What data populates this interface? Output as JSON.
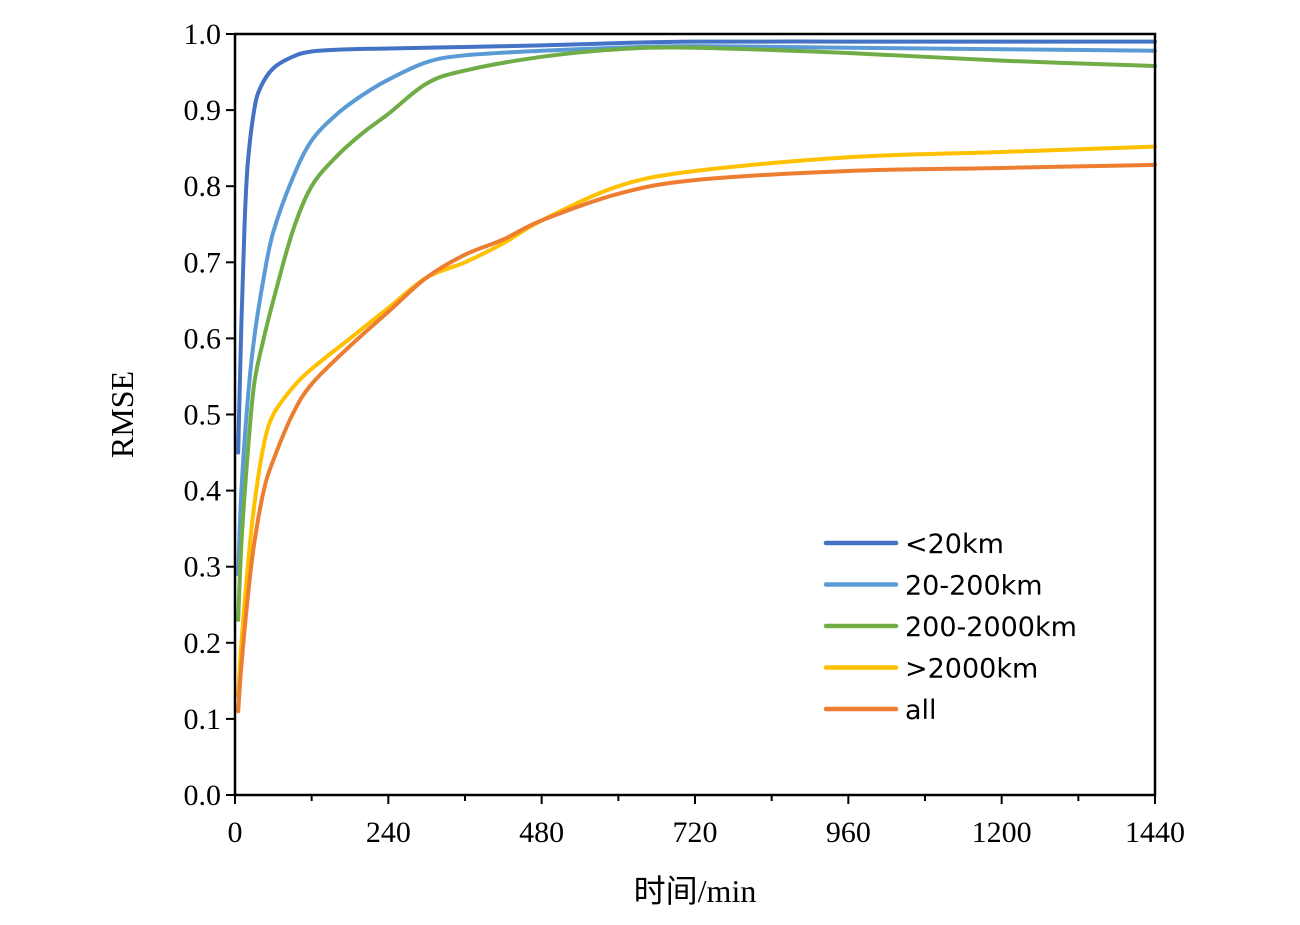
{
  "chart_data": {
    "type": "line",
    "title": "",
    "xlabel": "时间/min",
    "ylabel": "RMSE",
    "xlim": [
      0,
      1440
    ],
    "ylim": [
      0.0,
      1.0
    ],
    "x_ticks": [
      0,
      240,
      480,
      720,
      960,
      1200,
      1440
    ],
    "x_tick_labels": [
      "0",
      "240",
      "480",
      "720",
      "960",
      "1200",
      "1440"
    ],
    "x_minor_ticks": [
      120,
      360,
      600,
      840,
      1080,
      1320
    ],
    "y_ticks": [
      0.0,
      0.1,
      0.2,
      0.3,
      0.4,
      0.5,
      0.6,
      0.7,
      0.8,
      0.9,
      1.0
    ],
    "y_tick_labels": [
      "0.0",
      "0.1",
      "0.2",
      "0.3",
      "0.4",
      "0.5",
      "0.6",
      "0.7",
      "0.8",
      "0.9",
      "1.0"
    ],
    "grid": false,
    "legend_position": "bottom-right",
    "series": [
      {
        "name": "<20km",
        "color": "#4472C4",
        "points": [
          [
            5,
            0.45
          ],
          [
            10,
            0.62
          ],
          [
            15,
            0.75
          ],
          [
            20,
            0.83
          ],
          [
            30,
            0.9
          ],
          [
            40,
            0.93
          ],
          [
            60,
            0.955
          ],
          [
            90,
            0.97
          ],
          [
            120,
            0.977
          ],
          [
            180,
            0.98
          ],
          [
            240,
            0.981
          ],
          [
            360,
            0.983
          ],
          [
            480,
            0.985
          ],
          [
            600,
            0.988
          ],
          [
            720,
            0.99
          ],
          [
            960,
            0.99
          ],
          [
            1200,
            0.99
          ],
          [
            1440,
            0.99
          ]
        ]
      },
      {
        "name": "20-200km",
        "color": "#5B9BD5",
        "points": [
          [
            5,
            0.29
          ],
          [
            10,
            0.4
          ],
          [
            20,
            0.52
          ],
          [
            30,
            0.6
          ],
          [
            45,
            0.68
          ],
          [
            60,
            0.74
          ],
          [
            90,
            0.81
          ],
          [
            120,
            0.86
          ],
          [
            160,
            0.895
          ],
          [
            200,
            0.92
          ],
          [
            240,
            0.94
          ],
          [
            300,
            0.963
          ],
          [
            360,
            0.972
          ],
          [
            480,
            0.978
          ],
          [
            600,
            0.982
          ],
          [
            720,
            0.984
          ],
          [
            960,
            0.982
          ],
          [
            1200,
            0.98
          ],
          [
            1440,
            0.978
          ]
        ]
      },
      {
        "name": "200-2000km",
        "color": "#70AD47",
        "points": [
          [
            5,
            0.23
          ],
          [
            10,
            0.33
          ],
          [
            20,
            0.45
          ],
          [
            30,
            0.54
          ],
          [
            45,
            0.6
          ],
          [
            60,
            0.65
          ],
          [
            90,
            0.74
          ],
          [
            120,
            0.8
          ],
          [
            160,
            0.84
          ],
          [
            200,
            0.87
          ],
          [
            240,
            0.895
          ],
          [
            300,
            0.935
          ],
          [
            360,
            0.952
          ],
          [
            480,
            0.97
          ],
          [
            600,
            0.98
          ],
          [
            720,
            0.982
          ],
          [
            960,
            0.975
          ],
          [
            1200,
            0.965
          ],
          [
            1440,
            0.958
          ]
        ]
      },
      {
        "name": ">2000km",
        "color": "#FFC000",
        "points": [
          [
            5,
            0.13
          ],
          [
            10,
            0.2
          ],
          [
            20,
            0.3
          ],
          [
            30,
            0.38
          ],
          [
            45,
            0.46
          ],
          [
            60,
            0.5
          ],
          [
            90,
            0.535
          ],
          [
            120,
            0.56
          ],
          [
            180,
            0.6
          ],
          [
            240,
            0.64
          ],
          [
            300,
            0.68
          ],
          [
            360,
            0.7
          ],
          [
            420,
            0.725
          ],
          [
            480,
            0.755
          ],
          [
            600,
            0.8
          ],
          [
            720,
            0.82
          ],
          [
            960,
            0.838
          ],
          [
            1200,
            0.845
          ],
          [
            1440,
            0.852
          ]
        ]
      },
      {
        "name": "all",
        "color": "#ED7D31",
        "points": [
          [
            5,
            0.11
          ],
          [
            10,
            0.17
          ],
          [
            20,
            0.26
          ],
          [
            30,
            0.33
          ],
          [
            45,
            0.4
          ],
          [
            60,
            0.44
          ],
          [
            90,
            0.5
          ],
          [
            120,
            0.54
          ],
          [
            180,
            0.59
          ],
          [
            240,
            0.635
          ],
          [
            300,
            0.68
          ],
          [
            360,
            0.71
          ],
          [
            420,
            0.73
          ],
          [
            480,
            0.755
          ],
          [
            600,
            0.79
          ],
          [
            720,
            0.808
          ],
          [
            960,
            0.82
          ],
          [
            1200,
            0.824
          ],
          [
            1440,
            0.828
          ]
        ]
      }
    ]
  }
}
